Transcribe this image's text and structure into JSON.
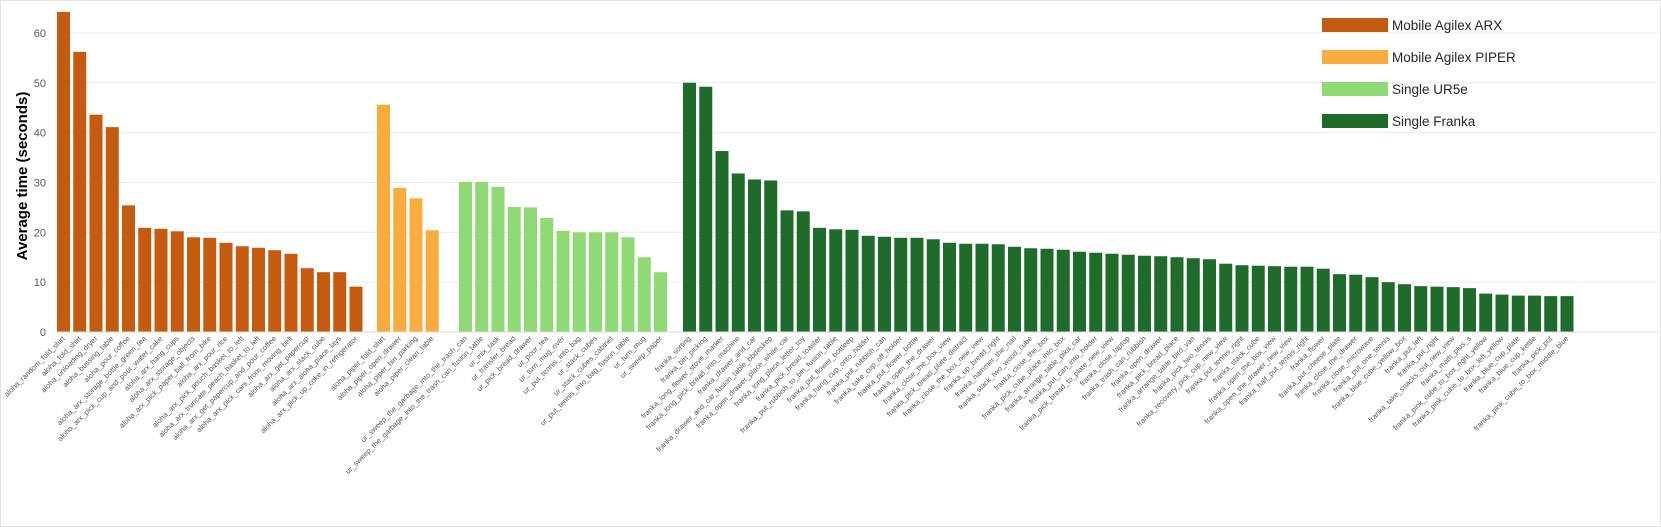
{
  "chart_data": {
    "type": "bar",
    "ylabel": "Average time (seconds)",
    "ylim": [
      0,
      65
    ],
    "yticks": [
      0,
      10,
      20,
      30,
      40,
      50,
      60
    ],
    "grid": true,
    "legend_position": "top-right",
    "series": [
      {
        "name": "Mobile Agilex ARX",
        "color": "#C55A11",
        "categories": [
          "aloha_random_fold_shirt",
          "aloha_fold_shirt",
          "aloha_unloading_dryer",
          "aloha_bussing_table",
          "aloha_pour_coffee",
          "aloha_arx_storage_bottle_green_tea",
          "aloha_arx_pick_cup_and_pour_water_cake",
          "aloha_arx_hang_cups",
          "aloha_arx_storage_objects",
          "aloha_arx_pick_paper_ball_from_bike",
          "aloha_arx_pour_rice",
          "aloha_arx_pick_pouch_basket_to_left",
          "aloha_arx_truncate_peach_basket_to_left",
          "aloha_arx_get_papercup_and_pour_coffee",
          "aloha_arx_pick_cars_from_moving_belt",
          "aloha_arx_get_papercup",
          "aloha_arx_stack_cube",
          "aloha_arx_aloha_place_lays",
          "aloha_arx_pick_up_coke_in_refrigerator"
        ],
        "values": [
          64.2,
          56.2,
          43.6,
          41.1,
          25.4,
          20.9,
          20.7,
          20.2,
          19.0,
          18.9,
          17.9,
          17.2,
          16.9,
          16.4,
          15.7,
          12.8,
          12.0,
          12.0,
          9.1
        ]
      },
      {
        "name": "Mobile Agilex PIPER",
        "color": "#F9AC3D",
        "categories": [
          "aloha_piper_fold_shirt",
          "aloha_piper_open_drawer",
          "aloha_piper_bin_parking",
          "aloha_piper_clean_table"
        ],
        "values": [
          45.6,
          28.9,
          26.8,
          20.4
        ]
      },
      {
        "name": "Single UR5e",
        "color": "#8FDA74",
        "categories": [
          "ur_sweep_the_garbage_into_the_trash_can",
          "ur_sweep_the_garbage_into_the_trash_can_fusion_table",
          "ur_mix_task",
          "ur_transfer_bread",
          "ur_pick_bread_drawer",
          "ur_pour_tea",
          "ur_turn_mug_over",
          "ur_put_tennis_into_bag",
          "ur_stack_cubes",
          "ur_stack_cubes_cabinet",
          "ur_put_tennis_into_bag_fusion_table",
          "ur_turn_mug",
          "ur_sweep_paper"
        ],
        "values": [
          30.1,
          30.1,
          29.1,
          25.1,
          25.0,
          22.9,
          20.3,
          20.0,
          20.0,
          20.0,
          19.0,
          15.0,
          12.0
        ]
      },
      {
        "name": "Single Franka",
        "color": "#1F6B2A",
        "categories": [
          "franka_sorting",
          "franka_bin_picking",
          "franka_long_flower_stove_marker",
          "franka_long_pick_bread_into_machine",
          "franka_drawer_and_car",
          "franka_drawer_and_car_fusion_table_bbdeskep",
          "franka_open_drawer_place_white_car",
          "franka_long_place_letter_toy",
          "franka_pick_bread_toaster",
          "franka_put_rubbish_to_bin_fusion_table",
          "franka_put_flower_bottleep",
          "franka_hang_cup_onto_holder",
          "franka_put_rubbish_can",
          "franka_take_cup_off_holder",
          "franka_put_flower_bottle",
          "franka_open_the_drawer",
          "franka_close_the_box_view",
          "franka_pick_bread_plate_distract",
          "franka_close_the_box_new_view",
          "franka_up_bread_right",
          "franka_hammer_the_nail",
          "franka_stack_two_wood_cube",
          "franka_close_the_box",
          "franka_pick_cube_place_into_box",
          "franka_arrange_table_pika_car",
          "franka_put_can_into_holder",
          "franka_pick_bread_to_plate_new_view",
          "franka_close_laptop",
          "franka_trash_can_rubbish",
          "franka_open_drawer",
          "franka_pick_bread_place",
          "franka_arrange_table_bird_van",
          "franka_pick_two_tennis",
          "franka_recovery_pick_cup_new_view",
          "franka_put_tennis_right",
          "franka_stack_cube",
          "franka_open_the_box_view",
          "franka_open_the_drawer_new_view",
          "franka_half_put_tennis_right",
          "franka_flower",
          "franka_put_cheese_plate",
          "franka_close_the_drawer",
          "franka_close_microwave",
          "franka_put_one_tennis",
          "franka_blue_cube_yellow_box",
          "franka_put_left",
          "franka_put_right",
          "franka_take_snacks_out_new_view",
          "franka_math_plus_s",
          "franka_pink_cube_to_box_right_yellow",
          "franka_pink_cube_to_box_left_yellow",
          "franka_blue_cup_plate",
          "franka_blue_cup_kettle",
          "franka_pick_pot",
          "franka_pink_cube_to_box_middle_blue"
        ],
        "values": [
          50.0,
          49.2,
          36.3,
          31.8,
          30.6,
          30.4,
          24.4,
          24.2,
          20.9,
          20.6,
          20.5,
          19.3,
          19.1,
          18.9,
          18.9,
          18.6,
          17.9,
          17.7,
          17.7,
          17.6,
          17.1,
          16.8,
          16.7,
          16.5,
          16.1,
          15.9,
          15.7,
          15.5,
          15.3,
          15.2,
          15.0,
          14.8,
          14.6,
          13.7,
          13.4,
          13.3,
          13.2,
          13.1,
          13.1,
          12.7,
          11.6,
          11.5,
          11.0,
          10.0,
          9.6,
          9.2,
          9.1,
          9.0,
          8.8,
          7.7,
          7.5,
          7.3,
          7.3,
          7.2,
          7.2
        ]
      }
    ]
  }
}
